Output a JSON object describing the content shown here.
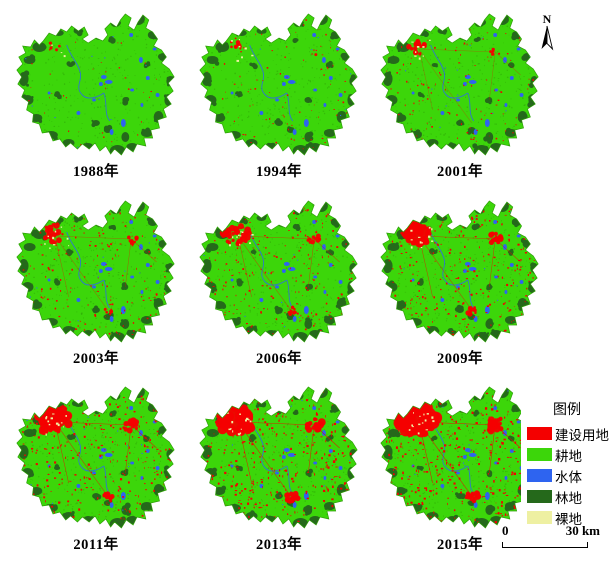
{
  "figure": {
    "description": "九期土地利用分类图",
    "background": "#ffffff"
  },
  "north_arrow": {
    "label": "N"
  },
  "maps": [
    {
      "label": "1988年"
    },
    {
      "label": "1994年"
    },
    {
      "label": "2001年"
    },
    {
      "label": "2003年"
    },
    {
      "label": "2006年"
    },
    {
      "label": "2009年"
    },
    {
      "label": "2011年"
    },
    {
      "label": "2013年"
    },
    {
      "label": "2015年"
    }
  ],
  "legend": {
    "title": "图例",
    "items": [
      {
        "label": "建设用地",
        "color": "#f40000"
      },
      {
        "label": "耕地",
        "color": "#3cd60a"
      },
      {
        "label": "水体",
        "color": "#2e64f0"
      },
      {
        "label": "林地",
        "color": "#25691b"
      },
      {
        "label": "裸地",
        "color": "#eef0a2"
      }
    ]
  },
  "scale_bar": {
    "start_label": "0",
    "end_label": "30 km"
  },
  "palette": {
    "cropland": "#3cd60a",
    "cropland_texture": "#2ea608",
    "forest": "#25691b",
    "water": "#2e64f0",
    "built": "#f40000",
    "bare": "#eef0a2"
  }
}
